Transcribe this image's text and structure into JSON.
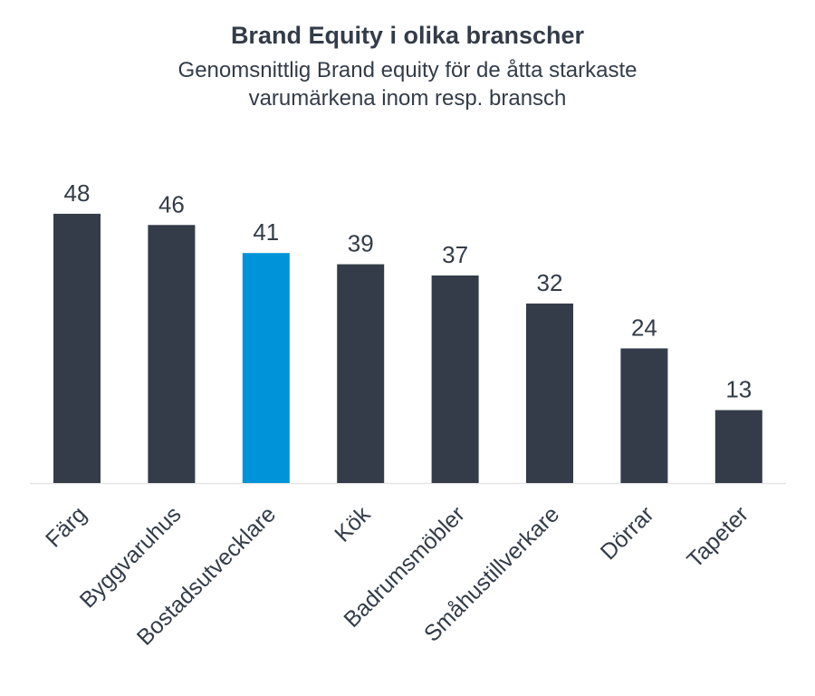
{
  "chart_data": {
    "type": "bar",
    "title": "Brand Equity i olika branscher",
    "subtitle": "Genomsnittlig Brand equity för de åtta starkaste varumärkena inom resp. bransch",
    "categories": [
      "Färg",
      "Byggvaruhus",
      "Bostadsutvecklare",
      "Kök",
      "Badrumsmöbler",
      "Småhustillverkare",
      "Dörrar",
      "Tapeter"
    ],
    "values": [
      48,
      46,
      41,
      39,
      37,
      32,
      24,
      13
    ],
    "highlight_index": 2,
    "colors": {
      "bar": "#333c48",
      "highlight": "#0093d9",
      "text": "#333c48",
      "axis": "#e6e6e6"
    },
    "xlabel": "",
    "ylabel": "",
    "ylim": [
      0,
      48
    ],
    "grid": false,
    "legend": "none"
  }
}
